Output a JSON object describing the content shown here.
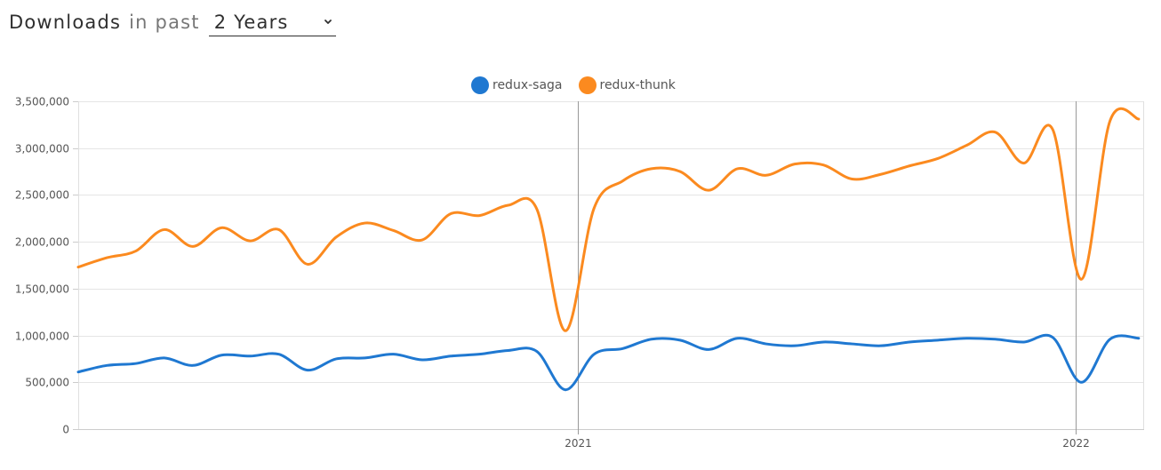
{
  "header": {
    "title": "Downloads",
    "subtitle": "in past",
    "range_value": "2 Years"
  },
  "colors": {
    "redux-saga": "#1f78d1",
    "redux-thunk": "#fb8a1f",
    "grid": "#e5e5e5",
    "axis_text": "#555555"
  },
  "icons": {
    "range_dropdown": "chevron-down-icon"
  },
  "chart_data": {
    "type": "line",
    "ylim": [
      0,
      3500000
    ],
    "yticks": [
      0,
      500000,
      1000000,
      1500000,
      2000000,
      2500000,
      3000000,
      3500000
    ],
    "ytick_labels": [
      "0",
      "500,000",
      "1,000,000",
      "1,500,000",
      "2,000,000",
      "2,500,000",
      "3,000,000",
      "3,500,000"
    ],
    "xlim": [
      "2020-01-01",
      "2022-02-20"
    ],
    "xticks": [
      "2021-01-01",
      "2022-01-01"
    ],
    "xtick_labels": [
      "2021",
      "2022"
    ],
    "grid": true,
    "legend_position": "top-center",
    "x": [
      "2020-01-01",
      "2020-01-22",
      "2020-02-12",
      "2020-03-04",
      "2020-03-25",
      "2020-04-15",
      "2020-05-06",
      "2020-05-27",
      "2020-06-17",
      "2020-07-08",
      "2020-07-29",
      "2020-08-19",
      "2020-09-09",
      "2020-09-30",
      "2020-10-21",
      "2020-11-11",
      "2020-12-02",
      "2020-12-23",
      "2021-01-13",
      "2021-02-03",
      "2021-02-24",
      "2021-03-17",
      "2021-04-07",
      "2021-04-28",
      "2021-05-19",
      "2021-06-09",
      "2021-06-30",
      "2021-07-21",
      "2021-08-11",
      "2021-09-01",
      "2021-09-22",
      "2021-10-13",
      "2021-11-03",
      "2021-11-24",
      "2021-12-15",
      "2022-01-05",
      "2022-01-26",
      "2022-02-16"
    ],
    "series": [
      {
        "name": "redux-saga",
        "values": [
          610000,
          680000,
          700000,
          760000,
          680000,
          790000,
          780000,
          800000,
          630000,
          750000,
          760000,
          800000,
          740000,
          780000,
          800000,
          840000,
          830000,
          420000,
          800000,
          860000,
          960000,
          950000,
          850000,
          970000,
          910000,
          890000,
          930000,
          910000,
          890000,
          930000,
          950000,
          970000,
          960000,
          930000,
          980000,
          500000,
          960000,
          970000
        ]
      },
      {
        "name": "redux-thunk",
        "values": [
          1730000,
          1830000,
          1900000,
          2130000,
          1950000,
          2150000,
          2010000,
          2130000,
          1760000,
          2050000,
          2200000,
          2120000,
          2020000,
          2300000,
          2280000,
          2390000,
          2350000,
          1050000,
          2360000,
          2650000,
          2780000,
          2750000,
          2550000,
          2780000,
          2710000,
          2830000,
          2820000,
          2670000,
          2720000,
          2810000,
          2890000,
          3030000,
          3170000,
          2840000,
          3200000,
          1600000,
          3290000,
          3310000
        ]
      }
    ]
  }
}
